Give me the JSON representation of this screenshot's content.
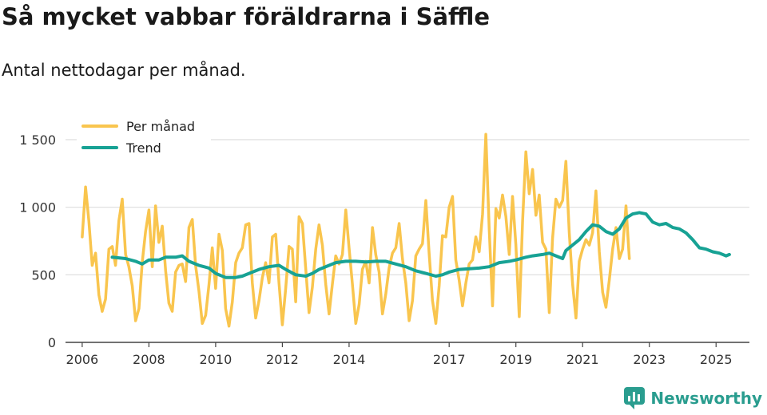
{
  "header": {
    "title": "Så mycket vabbar föräldrarna i Säffle",
    "subtitle": "Antal nettodagar per månad."
  },
  "brand": {
    "name": "Newsworthy"
  },
  "colors": {
    "monthly": "#f9c54e",
    "trend": "#17a294",
    "grid": "#dddddd",
    "axis": "#444444",
    "brand": "#2a9d8f"
  },
  "chart_data": {
    "type": "line",
    "title": "Så mycket vabbar föräldrarna i Säffle",
    "subtitle": "Antal nettodagar per månad.",
    "xlabel": "",
    "ylabel": "",
    "xlim": [
      2005.5,
      2026.0
    ],
    "ylim": [
      0,
      1500
    ],
    "y_ticks": [
      0,
      500,
      1000,
      1500
    ],
    "y_tick_labels": [
      "0",
      "500",
      "1 000",
      "1 500"
    ],
    "x_ticks": [
      2006,
      2008,
      2010,
      2012,
      2014,
      2017,
      2019,
      2021,
      2023,
      2025
    ],
    "x_tick_labels": [
      "2006",
      "2008",
      "2010",
      "2012",
      "2014",
      "2017",
      "2019",
      "2021",
      "2023",
      "2025"
    ],
    "grid": true,
    "legend_position": "top-left",
    "series": [
      {
        "name": "Per månad",
        "color": "#f9c54e",
        "x_start": 2006.0,
        "x_step": 0.1,
        "values": [
          780,
          1150,
          900,
          570,
          660,
          350,
          230,
          320,
          690,
          710,
          570,
          900,
          1060,
          650,
          560,
          420,
          160,
          250,
          590,
          820,
          980,
          560,
          1010,
          740,
          860,
          530,
          290,
          230,
          520,
          570,
          580,
          450,
          850,
          910,
          570,
          380,
          140,
          200,
          430,
          700,
          400,
          800,
          680,
          250,
          120,
          300,
          590,
          660,
          700,
          870,
          880,
          440,
          180,
          310,
          480,
          590,
          440,
          780,
          800,
          440,
          130,
          400,
          710,
          690,
          300,
          930,
          880,
          550,
          220,
          410,
          690,
          870,
          720,
          430,
          210,
          430,
          640,
          580,
          650,
          980,
          700,
          430,
          140,
          280,
          540,
          600,
          440,
          850,
          650,
          520,
          210,
          360,
          550,
          660,
          700,
          880,
          620,
          440,
          160,
          310,
          640,
          690,
          730,
          1050,
          660,
          310,
          140,
          420,
          790,
          780,
          1000,
          1080,
          610,
          460,
          270,
          440,
          580,
          610,
          780,
          670,
          950,
          1540,
          840,
          270,
          990,
          920,
          1090,
          930,
          650,
          1080,
          720,
          190,
          900,
          1410,
          1100,
          1280,
          940,
          1090,
          740,
          690,
          220,
          770,
          1060,
          1000,
          1050,
          1340,
          810,
          430,
          180,
          600,
          690,
          760,
          720,
          810,
          1120,
          670,
          370,
          260,
          460,
          690,
          850,
          620,
          690,
          1010,
          620
        ]
      },
      {
        "name": "Trend",
        "color": "#17a294",
        "points": [
          [
            2006.9,
            630
          ],
          [
            2007.3,
            620
          ],
          [
            2007.6,
            600
          ],
          [
            2007.8,
            580
          ],
          [
            2008.0,
            610
          ],
          [
            2008.3,
            610
          ],
          [
            2008.5,
            630
          ],
          [
            2008.8,
            630
          ],
          [
            2009.0,
            640
          ],
          [
            2009.2,
            600
          ],
          [
            2009.5,
            570
          ],
          [
            2009.8,
            550
          ],
          [
            2010.0,
            510
          ],
          [
            2010.3,
            480
          ],
          [
            2010.6,
            480
          ],
          [
            2010.8,
            490
          ],
          [
            2011.0,
            510
          ],
          [
            2011.3,
            540
          ],
          [
            2011.6,
            560
          ],
          [
            2011.9,
            570
          ],
          [
            2012.1,
            540
          ],
          [
            2012.4,
            500
          ],
          [
            2012.7,
            490
          ],
          [
            2012.9,
            510
          ],
          [
            2013.1,
            540
          ],
          [
            2013.4,
            570
          ],
          [
            2013.6,
            590
          ],
          [
            2013.9,
            600
          ],
          [
            2014.2,
            600
          ],
          [
            2014.5,
            595
          ],
          [
            2014.8,
            600
          ],
          [
            2015.1,
            600
          ],
          [
            2015.4,
            580
          ],
          [
            2015.7,
            560
          ],
          [
            2016.0,
            530
          ],
          [
            2016.3,
            510
          ],
          [
            2016.6,
            490
          ],
          [
            2016.8,
            500
          ],
          [
            2017.0,
            520
          ],
          [
            2017.3,
            540
          ],
          [
            2017.6,
            545
          ],
          [
            2017.9,
            550
          ],
          [
            2018.2,
            560
          ],
          [
            2018.5,
            590
          ],
          [
            2018.8,
            600
          ],
          [
            2019.0,
            610
          ],
          [
            2019.3,
            630
          ],
          [
            2019.5,
            640
          ],
          [
            2019.8,
            650
          ],
          [
            2020.0,
            660
          ],
          [
            2020.2,
            640
          ],
          [
            2020.4,
            620
          ],
          [
            2020.5,
            680
          ],
          [
            2020.7,
            720
          ],
          [
            2020.9,
            760
          ],
          [
            2021.1,
            820
          ],
          [
            2021.3,
            870
          ],
          [
            2021.5,
            860
          ],
          [
            2021.7,
            820
          ],
          [
            2021.9,
            800
          ],
          [
            2022.1,
            840
          ],
          [
            2022.3,
            920
          ],
          [
            2022.5,
            950
          ],
          [
            2022.7,
            960
          ],
          [
            2022.9,
            950
          ],
          [
            2023.1,
            890
          ],
          [
            2023.3,
            870
          ],
          [
            2023.5,
            880
          ],
          [
            2023.7,
            850
          ],
          [
            2023.9,
            840
          ],
          [
            2024.1,
            810
          ],
          [
            2024.3,
            760
          ],
          [
            2024.5,
            700
          ],
          [
            2024.7,
            690
          ],
          [
            2024.9,
            670
          ],
          [
            2025.1,
            660
          ],
          [
            2025.3,
            640
          ],
          [
            2025.4,
            650
          ]
        ]
      }
    ]
  }
}
